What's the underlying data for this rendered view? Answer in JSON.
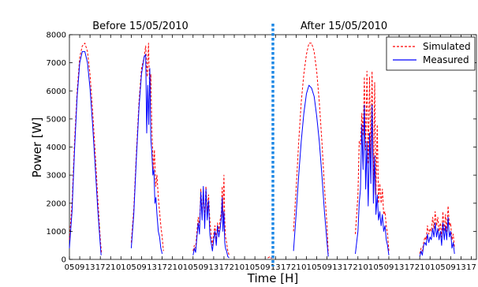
{
  "chart_data": {
    "type": "line",
    "xlabel": "Time [H]",
    "ylabel": "Power [W]",
    "ylim": [
      0,
      8000
    ],
    "yticks": [
      0,
      1000,
      2000,
      3000,
      4000,
      5000,
      6000,
      7000,
      8000
    ],
    "x_unit": "hours",
    "xlim": [
      5,
      163
    ],
    "xtick_labels": [
      "05",
      "09",
      "13",
      "17",
      "21",
      "01",
      "05",
      "09",
      "13",
      "17",
      "21",
      "01",
      "05",
      "09",
      "13",
      "17",
      "21",
      "01",
      "05",
      "09",
      "13",
      "17",
      "21",
      "01",
      "05",
      "09",
      "13",
      "17",
      "21",
      "01",
      "05",
      "09",
      "13",
      "17",
      "21",
      "01",
      "05",
      "09",
      "13",
      "17"
    ],
    "period_divider_x": 84,
    "period_labels": [
      "Before 15/05/2010",
      "After 15/05/2010"
    ],
    "legend_position": "top-right",
    "series": [
      {
        "name": "Simulated",
        "color": "#ff0000",
        "dash": "dashed",
        "points": [
          [
            5,
            700
          ],
          [
            6,
            2000
          ],
          [
            7,
            4200
          ],
          [
            8,
            6000
          ],
          [
            9,
            7200
          ],
          [
            10,
            7600
          ],
          [
            11,
            7700
          ],
          [
            12,
            7400
          ],
          [
            13,
            6600
          ],
          [
            14,
            5300
          ],
          [
            15,
            3800
          ],
          [
            16,
            2200
          ],
          [
            17,
            700
          ],
          [
            17.5,
            200
          ],
          "gap",
          [
            29,
            600
          ],
          [
            30,
            1800
          ],
          [
            31,
            3800
          ],
          [
            32,
            5600
          ],
          [
            33,
            6800
          ],
          [
            34,
            7200
          ],
          [
            34.6,
            7600
          ],
          [
            35.2,
            6500
          ],
          [
            35.7,
            7700
          ],
          [
            36.2,
            5800
          ],
          [
            36.6,
            6600
          ],
          [
            37,
            4600
          ],
          [
            37.6,
            3200
          ],
          [
            38,
            3900
          ],
          [
            38.5,
            2600
          ],
          [
            39,
            3000
          ],
          [
            39.5,
            2200
          ],
          [
            40,
            1700
          ],
          [
            40.5,
            1200
          ],
          [
            41,
            800
          ],
          [
            41.5,
            300
          ],
          "gap",
          [
            53,
            300
          ],
          [
            53.5,
            500
          ],
          [
            54,
            400
          ],
          [
            54.5,
            1000
          ],
          [
            55,
            1500
          ],
          [
            55.5,
            1200
          ],
          [
            56,
            2500
          ],
          [
            56.5,
            1700
          ],
          [
            57,
            2200
          ],
          [
            57.5,
            1500
          ],
          [
            58,
            2600
          ],
          [
            58.5,
            1700
          ],
          [
            59,
            2300
          ],
          [
            59.5,
            1400
          ],
          [
            60,
            900
          ],
          [
            60.5,
            500
          ],
          [
            61,
            900
          ],
          [
            61.5,
            1200
          ],
          [
            62,
            700
          ],
          [
            62.5,
            1300
          ],
          [
            63,
            1000
          ],
          [
            63.5,
            1400
          ],
          [
            64,
            1700
          ],
          [
            64.3,
            2600
          ],
          [
            64.6,
            1500
          ],
          [
            65,
            3000
          ],
          [
            65.3,
            1400
          ],
          [
            65.6,
            800
          ],
          [
            66,
            600
          ],
          [
            66.5,
            300
          ],
          [
            67,
            150
          ],
          "gap",
          [
            82,
            50
          ],
          [
            83,
            100
          ],
          [
            83.5,
            30
          ],
          "gap",
          [
            92,
            1000
          ],
          [
            93,
            2500
          ],
          [
            94,
            4200
          ],
          [
            95,
            5600
          ],
          [
            96,
            6600
          ],
          [
            97,
            7300
          ],
          [
            98,
            7700
          ],
          [
            99,
            7700
          ],
          [
            100,
            7400
          ],
          [
            101,
            6700
          ],
          [
            102,
            5600
          ],
          [
            103,
            4200
          ],
          [
            104,
            2600
          ],
          [
            105,
            1200
          ],
          [
            105.5,
            200
          ],
          "gap",
          [
            116,
            900
          ],
          [
            117,
            2300
          ],
          [
            117.5,
            4200
          ],
          [
            118,
            4100
          ],
          [
            118.5,
            5200
          ],
          [
            119,
            4400
          ],
          [
            119.5,
            6500
          ],
          [
            120,
            3900
          ],
          [
            120.5,
            6700
          ],
          [
            121,
            3400
          ],
          [
            121.5,
            6500
          ],
          [
            122,
            3600
          ],
          [
            122.5,
            6700
          ],
          [
            123,
            2800
          ],
          [
            123.5,
            6300
          ],
          [
            124,
            2300
          ],
          [
            124.5,
            4800
          ],
          [
            125,
            2000
          ],
          [
            125.5,
            2700
          ],
          [
            126,
            2000
          ],
          [
            126.5,
            2500
          ],
          [
            127,
            1600
          ],
          [
            127.5,
            1700
          ],
          [
            128,
            1200
          ],
          [
            128.5,
            900
          ],
          [
            129,
            300
          ],
          "gap",
          [
            141,
            200
          ],
          [
            141.5,
            400
          ],
          [
            142,
            300
          ],
          [
            142.5,
            600
          ],
          [
            143,
            800
          ],
          [
            143.5,
            700
          ],
          [
            144,
            1200
          ],
          [
            144.5,
            900
          ],
          [
            145,
            1100
          ],
          [
            145.5,
            1000
          ],
          [
            146,
            1500
          ],
          [
            146.5,
            1100
          ],
          [
            147,
            1700
          ],
          [
            147.5,
            1200
          ],
          [
            148,
            1500
          ],
          [
            148.5,
            1000
          ],
          [
            149,
            1300
          ],
          [
            149.5,
            800
          ],
          [
            150,
            1700
          ],
          [
            150.5,
            1000
          ],
          [
            151,
            1600
          ],
          [
            151.5,
            1000
          ],
          [
            152,
            1900
          ],
          [
            152.5,
            1200
          ],
          [
            153,
            1300
          ],
          [
            153.5,
            700
          ],
          [
            154,
            900
          ],
          [
            154.5,
            400
          ]
        ]
      },
      {
        "name": "Measured",
        "color": "#0000ff",
        "dash": "solid",
        "points": [
          [
            5,
            400
          ],
          [
            6,
            1700
          ],
          [
            7,
            3900
          ],
          [
            8,
            5800
          ],
          [
            9,
            7000
          ],
          [
            10,
            7400
          ],
          [
            11,
            7400
          ],
          [
            12,
            7000
          ],
          [
            13,
            6100
          ],
          [
            14,
            4800
          ],
          [
            15,
            3300
          ],
          [
            16,
            1800
          ],
          [
            17,
            500
          ],
          [
            17.3,
            150
          ],
          "gap",
          [
            29,
            400
          ],
          [
            30,
            1600
          ],
          [
            31,
            3600
          ],
          [
            32,
            5400
          ],
          [
            33,
            6600
          ],
          [
            34,
            7200
          ],
          [
            34.6,
            7300
          ],
          [
            35,
            4500
          ],
          [
            35.4,
            6200
          ],
          [
            35.8,
            4800
          ],
          [
            36.2,
            6800
          ],
          [
            36.6,
            4300
          ],
          [
            37,
            3800
          ],
          [
            37.4,
            3000
          ],
          [
            37.8,
            3200
          ],
          [
            38.2,
            2000
          ],
          [
            38.6,
            2200
          ],
          [
            39,
            1600
          ],
          [
            39.5,
            1000
          ],
          [
            40,
            800
          ],
          [
            40.5,
            400
          ],
          [
            41,
            200
          ],
          "gap",
          [
            53,
            150
          ],
          [
            53.5,
            400
          ],
          [
            54,
            250
          ],
          [
            54.5,
            800
          ],
          [
            55,
            1300
          ],
          [
            55.5,
            900
          ],
          [
            56,
            2400
          ],
          [
            56.5,
            1400
          ],
          [
            57,
            2600
          ],
          [
            57.5,
            1100
          ],
          [
            58,
            2500
          ],
          [
            58.5,
            1400
          ],
          [
            59,
            2100
          ],
          [
            59.5,
            900
          ],
          [
            60,
            600
          ],
          [
            60.5,
            300
          ],
          [
            61,
            700
          ],
          [
            61.5,
            1000
          ],
          [
            62,
            500
          ],
          [
            62.5,
            1200
          ],
          [
            63,
            800
          ],
          [
            63.5,
            1100
          ],
          [
            64,
            1500
          ],
          [
            64.3,
            2200
          ],
          [
            64.6,
            1000
          ],
          [
            65,
            1700
          ],
          [
            65.3,
            600
          ],
          [
            65.6,
            400
          ],
          [
            66,
            300
          ],
          [
            66.5,
            100
          ],
          [
            67,
            50
          ],
          "gap",
          [
            92,
            300
          ],
          [
            93,
            1600
          ],
          [
            94,
            3000
          ],
          [
            95,
            4200
          ],
          [
            96,
            5200
          ],
          [
            97,
            5900
          ],
          [
            98,
            6200
          ],
          [
            99,
            6100
          ],
          [
            100,
            5800
          ],
          [
            101,
            5100
          ],
          [
            102,
            4200
          ],
          [
            103,
            3000
          ],
          [
            104,
            1700
          ],
          [
            105,
            600
          ],
          [
            105.5,
            100
          ],
          "gap",
          [
            116,
            200
          ],
          [
            117,
            1000
          ],
          [
            117.5,
            2000
          ],
          [
            118,
            2500
          ],
          [
            118.5,
            4800
          ],
          [
            119,
            3200
          ],
          [
            119.5,
            5500
          ],
          [
            120,
            2500
          ],
          [
            120.5,
            4200
          ],
          [
            121,
            1900
          ],
          [
            121.5,
            4500
          ],
          [
            122,
            2700
          ],
          [
            122.5,
            5500
          ],
          [
            123,
            2000
          ],
          [
            123.5,
            3700
          ],
          [
            124,
            1600
          ],
          [
            124.5,
            2300
          ],
          [
            125,
            1400
          ],
          [
            125.5,
            1700
          ],
          [
            126,
            1200
          ],
          [
            126.5,
            1600
          ],
          [
            127,
            1000
          ],
          [
            127.5,
            1200
          ],
          [
            128,
            700
          ],
          [
            128.5,
            500
          ],
          [
            129,
            150
          ],
          "gap",
          [
            141,
            100
          ],
          [
            141.5,
            300
          ],
          [
            142,
            150
          ],
          [
            142.5,
            500
          ],
          [
            143,
            600
          ],
          [
            143.5,
            500
          ],
          [
            144,
            900
          ],
          [
            144.5,
            600
          ],
          [
            145,
            800
          ],
          [
            145.5,
            700
          ],
          [
            146,
            1100
          ],
          [
            146.5,
            800
          ],
          [
            147,
            1300
          ],
          [
            147.5,
            800
          ],
          [
            148,
            1100
          ],
          [
            148.5,
            700
          ],
          [
            149,
            1000
          ],
          [
            149.5,
            500
          ],
          [
            150,
            1300
          ],
          [
            150.5,
            700
          ],
          [
            151,
            1200
          ],
          [
            151.5,
            700
          ],
          [
            152,
            1500
          ],
          [
            152.5,
            800
          ],
          [
            153,
            1000
          ],
          [
            153.5,
            400
          ],
          [
            154,
            600
          ],
          [
            154.5,
            200
          ]
        ]
      }
    ]
  }
}
